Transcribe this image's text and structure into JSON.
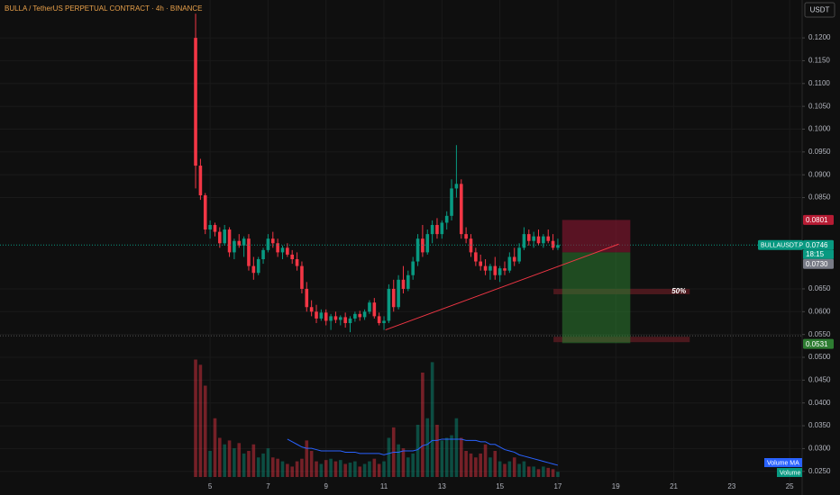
{
  "chart_data": {
    "type": "candlestick",
    "title": "BULLA / TetherUS PERPETUAL CONTRACT · 4h · BINANCE",
    "currency": "USDT",
    "symbol": "BULLAUSDT.P",
    "countdown": "18:15",
    "up_color": "#089981",
    "down_color": "#f23645",
    "grid": true,
    "xlim": [
      -2.25,
      25.43
    ],
    "xticks": [
      5,
      7,
      9,
      11,
      13,
      15,
      17,
      19,
      21,
      23,
      25
    ],
    "ylim": [
      0.0218,
      0.1283
    ],
    "yticks": [
      {
        "value": 0.12,
        "label": "0.1200"
      },
      {
        "value": 0.115,
        "label": "0.1150"
      },
      {
        "value": 0.11,
        "label": "0.1100"
      },
      {
        "value": 0.105,
        "label": "0.1050"
      },
      {
        "value": 0.1,
        "label": "0.1000"
      },
      {
        "value": 0.095,
        "label": "0.0950"
      },
      {
        "value": 0.09,
        "label": "0.0900"
      },
      {
        "value": 0.085,
        "label": "0.0850"
      },
      {
        "value": 0.065,
        "label": "0.0650"
      },
      {
        "value": 0.06,
        "label": "0.0600"
      },
      {
        "value": 0.055,
        "label": "0.0550"
      },
      {
        "value": 0.05,
        "label": "0.0500"
      },
      {
        "value": 0.045,
        "label": "0.0450"
      },
      {
        "value": 0.04,
        "label": "0.0400"
      },
      {
        "value": 0.035,
        "label": "0.0350"
      },
      {
        "value": 0.03,
        "label": "0.0300"
      },
      {
        "value": 0.025,
        "label": "0.0250"
      }
    ],
    "x": [
      4.5,
      4.667,
      4.833,
      5,
      5.167,
      5.333,
      5.5,
      5.667,
      5.833,
      6,
      6.167,
      6.333,
      6.5,
      6.667,
      6.833,
      7,
      7.167,
      7.333,
      7.5,
      7.667,
      7.833,
      8,
      8.167,
      8.333,
      8.5,
      8.667,
      8.833,
      9,
      9.167,
      9.333,
      9.5,
      9.667,
      9.833,
      10,
      10.167,
      10.333,
      10.5,
      10.667,
      10.833,
      11,
      11.167,
      11.333,
      11.5,
      11.667,
      11.833,
      12,
      12.167,
      12.333,
      12.5,
      12.667,
      12.833,
      13,
      13.167,
      13.333,
      13.5,
      13.667,
      13.833,
      14,
      14.167,
      14.333,
      14.5,
      14.667,
      14.833,
      15,
      15.167,
      15.333,
      15.5,
      15.667,
      15.833,
      16,
      16.167,
      16.333,
      16.5,
      16.667,
      16.833,
      17
    ],
    "open": [
      0.12,
      0.092,
      0.0855,
      0.078,
      0.079,
      0.0775,
      0.075,
      0.078,
      0.073,
      0.0755,
      0.0745,
      0.076,
      0.07,
      0.0685,
      0.0715,
      0.0735,
      0.076,
      0.075,
      0.073,
      0.074,
      0.0725,
      0.0715,
      0.07,
      0.065,
      0.061,
      0.06,
      0.0585,
      0.0598,
      0.058,
      0.059,
      0.0582,
      0.0588,
      0.0575,
      0.0585,
      0.0595,
      0.0588,
      0.06,
      0.062,
      0.059,
      0.0575,
      0.058,
      0.065,
      0.061,
      0.067,
      0.065,
      0.068,
      0.071,
      0.076,
      0.073,
      0.077,
      0.079,
      0.077,
      0.0795,
      0.081,
      0.087,
      0.088,
      0.077,
      0.076,
      0.073,
      0.071,
      0.07,
      0.069,
      0.07,
      0.068,
      0.0695,
      0.069,
      0.072,
      0.071,
      0.074,
      0.077,
      0.0755,
      0.0765,
      0.075,
      0.0765,
      0.0755,
      0.074
    ],
    "high": [
      0.1253,
      0.0935,
      0.086,
      0.08,
      0.0795,
      0.0785,
      0.079,
      0.0785,
      0.076,
      0.077,
      0.0765,
      0.077,
      0.072,
      0.072,
      0.074,
      0.077,
      0.0775,
      0.076,
      0.0745,
      0.075,
      0.0735,
      0.073,
      0.071,
      0.0665,
      0.0625,
      0.0615,
      0.0605,
      0.0605,
      0.0595,
      0.06,
      0.0592,
      0.0598,
      0.059,
      0.06,
      0.0602,
      0.0605,
      0.0625,
      0.063,
      0.0598,
      0.059,
      0.066,
      0.067,
      0.068,
      0.07,
      0.069,
      0.072,
      0.077,
      0.079,
      0.078,
      0.08,
      0.0805,
      0.08,
      0.082,
      0.089,
      0.0965,
      0.089,
      0.0785,
      0.077,
      0.074,
      0.0725,
      0.0715,
      0.0705,
      0.072,
      0.07,
      0.071,
      0.073,
      0.074,
      0.075,
      0.0785,
      0.078,
      0.0775,
      0.078,
      0.077,
      0.078,
      0.077,
      0.076
    ],
    "low": [
      0.087,
      0.0845,
      0.077,
      0.076,
      0.0765,
      0.074,
      0.0745,
      0.072,
      0.0715,
      0.074,
      0.072,
      0.069,
      0.067,
      0.068,
      0.0705,
      0.073,
      0.074,
      0.072,
      0.0715,
      0.072,
      0.0705,
      0.069,
      0.064,
      0.06,
      0.059,
      0.0575,
      0.058,
      0.057,
      0.056,
      0.0575,
      0.057,
      0.0565,
      0.0555,
      0.0578,
      0.058,
      0.0582,
      0.0595,
      0.0585,
      0.057,
      0.056,
      0.0575,
      0.06,
      0.0605,
      0.064,
      0.0645,
      0.067,
      0.07,
      0.072,
      0.0725,
      0.075,
      0.076,
      0.076,
      0.078,
      0.08,
      0.085,
      0.076,
      0.075,
      0.072,
      0.07,
      0.069,
      0.068,
      0.067,
      0.067,
      0.0665,
      0.068,
      0.0685,
      0.07,
      0.0705,
      0.0735,
      0.0745,
      0.074,
      0.0745,
      0.074,
      0.075,
      0.0735,
      0.0735
    ],
    "close": [
      0.092,
      0.0855,
      0.078,
      0.079,
      0.0775,
      0.075,
      0.078,
      0.073,
      0.0755,
      0.0745,
      0.076,
      0.07,
      0.0685,
      0.0715,
      0.0735,
      0.076,
      0.075,
      0.073,
      0.074,
      0.0725,
      0.0715,
      0.07,
      0.065,
      0.061,
      0.06,
      0.0585,
      0.0598,
      0.058,
      0.059,
      0.0582,
      0.0588,
      0.0575,
      0.0585,
      0.0595,
      0.0588,
      0.06,
      0.062,
      0.059,
      0.0575,
      0.058,
      0.065,
      0.061,
      0.067,
      0.065,
      0.068,
      0.071,
      0.076,
      0.073,
      0.077,
      0.079,
      0.077,
      0.0795,
      0.081,
      0.087,
      0.088,
      0.077,
      0.076,
      0.073,
      0.071,
      0.07,
      0.069,
      0.07,
      0.068,
      0.0695,
      0.069,
      0.072,
      0.071,
      0.074,
      0.077,
      0.0755,
      0.0765,
      0.075,
      0.0765,
      0.0755,
      0.074,
      0.0746
    ],
    "volume_name": "Volume",
    "volume_ylim": [
      0,
      100
    ],
    "volume": [
      90,
      86,
      70,
      20,
      45,
      30,
      25,
      28,
      22,
      26,
      18,
      20,
      25,
      15,
      18,
      22,
      15,
      14,
      12,
      10,
      8,
      12,
      14,
      28,
      20,
      12,
      10,
      13,
      14,
      12,
      13,
      10,
      11,
      12,
      8,
      10,
      12,
      14,
      10,
      12,
      30,
      38,
      25,
      22,
      15,
      18,
      40,
      80,
      45,
      88,
      40,
      28,
      30,
      32,
      45,
      30,
      20,
      18,
      15,
      18,
      25,
      15,
      20,
      12,
      10,
      12,
      15,
      10,
      12,
      8,
      8,
      6,
      8,
      7,
      6,
      4
    ],
    "volume_ma_name": "Volume MA",
    "volume_ma_color": "#2962ff",
    "volume_ma": [
      null,
      null,
      null,
      null,
      null,
      null,
      null,
      null,
      null,
      null,
      null,
      null,
      null,
      null,
      null,
      null,
      null,
      null,
      null,
      29,
      27,
      25,
      23,
      22,
      22,
      21,
      20,
      20,
      20,
      20,
      20,
      19,
      19,
      19,
      18,
      18,
      18,
      18,
      18,
      17,
      18,
      19,
      19,
      20,
      20,
      20,
      21,
      24,
      25,
      28,
      28,
      29,
      29,
      29,
      29,
      29,
      28,
      28,
      28,
      27,
      27,
      25,
      25,
      23,
      21,
      20,
      19,
      17,
      16,
      15,
      14,
      13,
      12,
      11,
      10,
      9
    ],
    "last_price": 0.0746,
    "hline": 0.0547,
    "trendline": {
      "x": [
        11.05,
        19.1
      ],
      "y": [
        0.056,
        0.0748
      ]
    },
    "position": {
      "x": [
        17.15,
        19.5
      ],
      "stop": 0.0801,
      "entry": {
        "value": 0.073,
        "label": "0.0730"
      },
      "target": 0.0531
    },
    "fib": {
      "x": [
        16.85,
        21.55
      ],
      "levels": [
        0.065,
        0.0545
      ],
      "label": "50%"
    }
  }
}
